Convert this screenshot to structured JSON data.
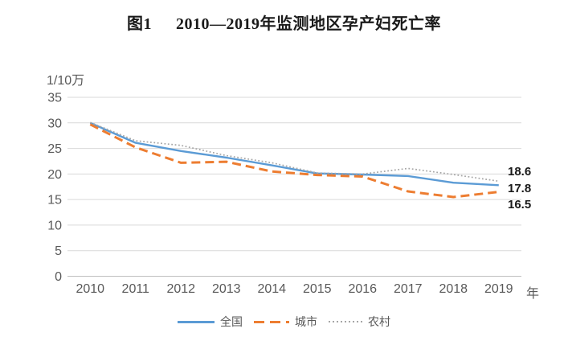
{
  "title": {
    "figure_label": "图1",
    "text": "2010—2019年监测地区孕产妇死亡率"
  },
  "chart_data": {
    "type": "line",
    "title": "图1 2010—2019年监测地区孕产妇死亡率",
    "y_axis_title": "1/10万",
    "x_axis_title": "年",
    "categories": [
      "2010",
      "2011",
      "2012",
      "2013",
      "2014",
      "2015",
      "2016",
      "2017",
      "2018",
      "2019"
    ],
    "yticks": [
      0,
      5,
      10,
      15,
      20,
      25,
      30,
      35
    ],
    "ylim": [
      0,
      35
    ],
    "grid": "horizontal",
    "legend_position": "bottom",
    "series": [
      {
        "name": "全国",
        "color": "#5B9BD5",
        "style": "solid",
        "values": [
          30.0,
          26.1,
          24.5,
          23.2,
          21.7,
          20.1,
          19.9,
          19.6,
          18.3,
          17.8
        ]
      },
      {
        "name": "城市",
        "color": "#ED7D31",
        "style": "dashed",
        "values": [
          29.7,
          25.2,
          22.2,
          22.4,
          20.5,
          19.8,
          19.5,
          16.6,
          15.5,
          16.5
        ]
      },
      {
        "name": "农村",
        "color": "#A6A6A6",
        "style": "dotted",
        "values": [
          30.1,
          26.5,
          25.6,
          23.6,
          22.2,
          20.2,
          20.0,
          21.1,
          19.9,
          18.6
        ]
      }
    ],
    "end_labels": [
      "18.6",
      "17.8",
      "16.5"
    ],
    "colors": {
      "tick_text": "#595959",
      "gridline": "#D9D9D9",
      "axis_line": "#BFBFBF",
      "data_label": "#1a1a1a"
    }
  }
}
